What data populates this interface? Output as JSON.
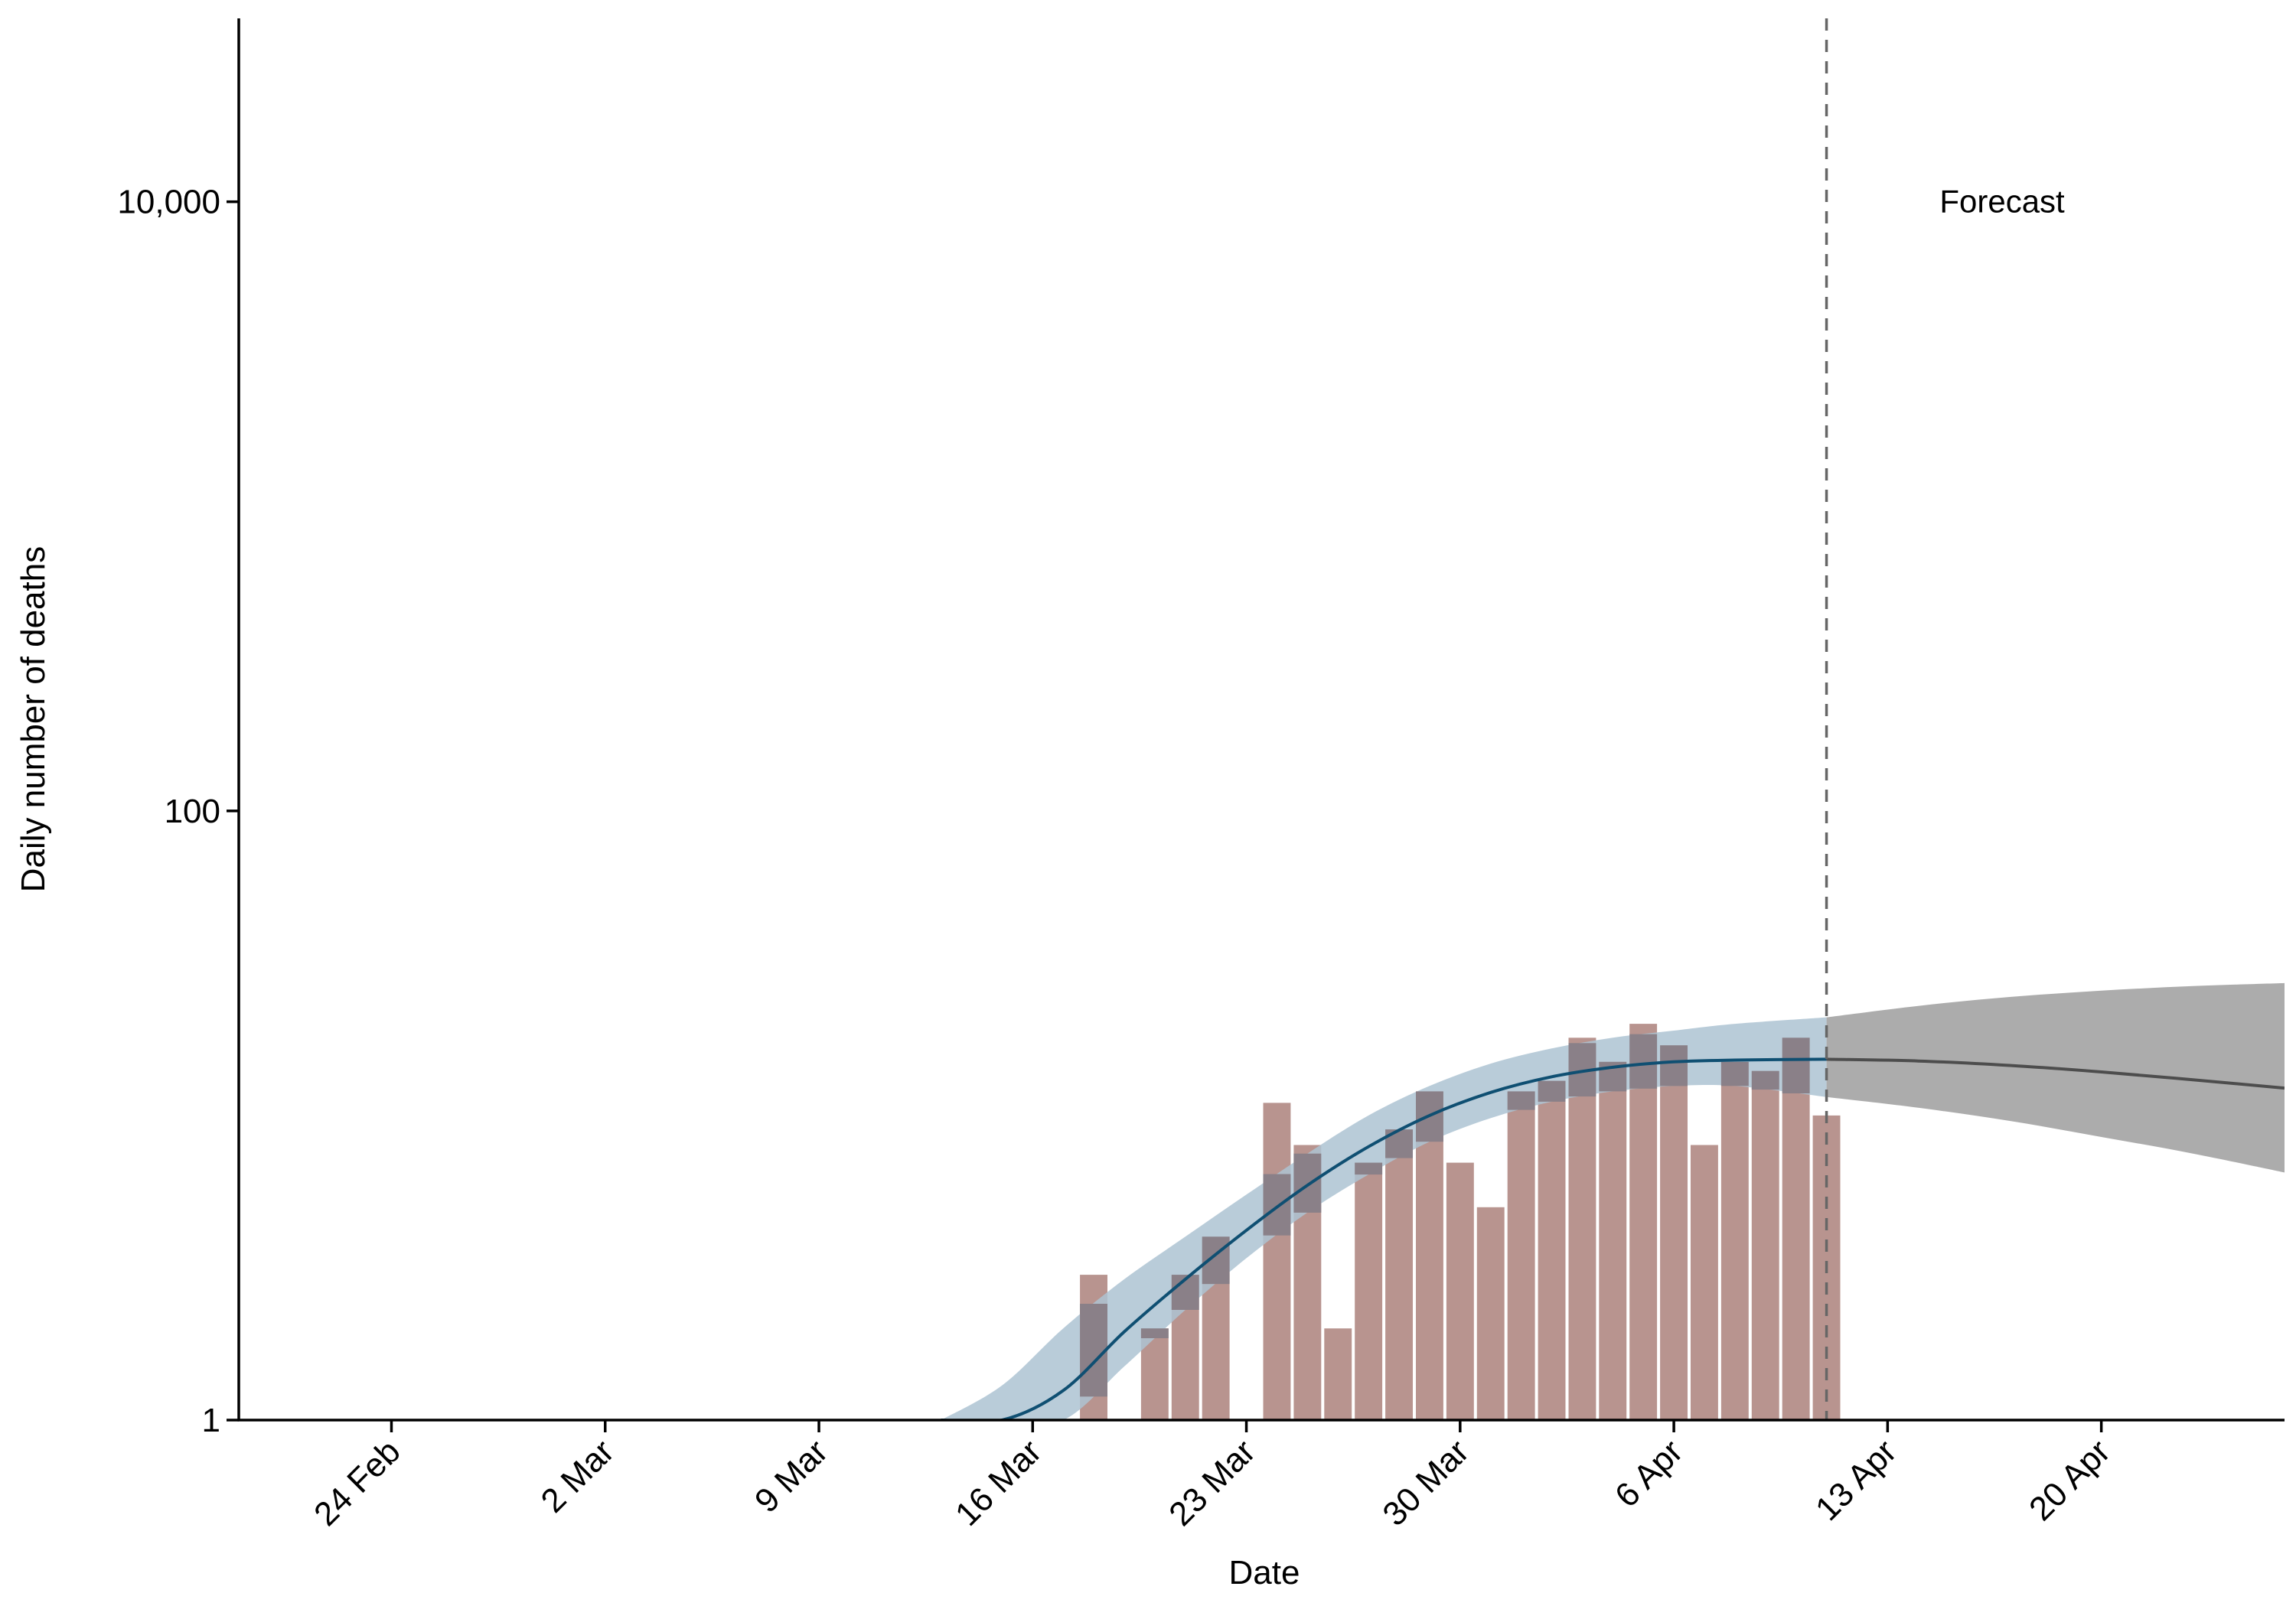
{
  "chart_data": {
    "type": "bar",
    "xlabel": "Date",
    "ylabel": "Daily number of deaths",
    "y_scale": "log10",
    "ylim": [
      1,
      40000
    ],
    "xlim": [
      "2020-02-19",
      "2020-04-26"
    ],
    "x_ticks": [
      {
        "date": "2020-02-24",
        "label": "24 Feb"
      },
      {
        "date": "2020-03-02",
        "label": "2 Mar"
      },
      {
        "date": "2020-03-09",
        "label": "9 Mar"
      },
      {
        "date": "2020-03-16",
        "label": "16 Mar"
      },
      {
        "date": "2020-03-23",
        "label": "23 Mar"
      },
      {
        "date": "2020-03-30",
        "label": "30 Mar"
      },
      {
        "date": "2020-04-06",
        "label": "6 Apr"
      },
      {
        "date": "2020-04-13",
        "label": "13 Apr"
      },
      {
        "date": "2020-04-20",
        "label": "20 Apr"
      }
    ],
    "y_ticks": [
      {
        "value": 1,
        "label": "1"
      },
      {
        "value": 100,
        "label": "100"
      },
      {
        "value": 10000,
        "label": "10,000"
      }
    ],
    "forecast_date": "2020-04-11",
    "annotations": [
      {
        "text": "Forecast",
        "date": "2020-04-16",
        "value": 10000
      }
    ],
    "colors": {
      "bars": "#b8948f",
      "fit_line": "#0f4f72",
      "fit_band": "#adc3d2",
      "forecast_band": "#a8a8a8",
      "forecast_line": "#4d4d4d",
      "vline": "#666666",
      "axis": "#000000"
    },
    "observed_deaths": [
      {
        "date": "2020-03-18",
        "value": 3
      },
      {
        "date": "2020-03-20",
        "value": 2
      },
      {
        "date": "2020-03-21",
        "value": 3
      },
      {
        "date": "2020-03-22",
        "value": 4
      },
      {
        "date": "2020-03-24",
        "value": 11
      },
      {
        "date": "2020-03-25",
        "value": 8
      },
      {
        "date": "2020-03-26",
        "value": 2
      },
      {
        "date": "2020-03-27",
        "value": 7
      },
      {
        "date": "2020-03-28",
        "value": 9
      },
      {
        "date": "2020-03-29",
        "value": 12
      },
      {
        "date": "2020-03-30",
        "value": 7
      },
      {
        "date": "2020-03-31",
        "value": 5
      },
      {
        "date": "2020-04-01",
        "value": 12
      },
      {
        "date": "2020-04-02",
        "value": 13
      },
      {
        "date": "2020-04-03",
        "value": 18
      },
      {
        "date": "2020-04-04",
        "value": 15
      },
      {
        "date": "2020-04-05",
        "value": 20
      },
      {
        "date": "2020-04-06",
        "value": 17
      },
      {
        "date": "2020-04-07",
        "value": 8
      },
      {
        "date": "2020-04-08",
        "value": 15
      },
      {
        "date": "2020-04-09",
        "value": 14
      },
      {
        "date": "2020-04-10",
        "value": 18
      },
      {
        "date": "2020-04-11",
        "value": 10
      }
    ],
    "fitted": {
      "dates": [
        "2020-03-13",
        "2020-03-15",
        "2020-03-17",
        "2020-03-19",
        "2020-03-21",
        "2020-03-23",
        "2020-03-25",
        "2020-03-27",
        "2020-03-29",
        "2020-03-31",
        "2020-04-02",
        "2020-04-04",
        "2020-04-06",
        "2020-04-08",
        "2020-04-11"
      ],
      "median": [
        0.45,
        0.75,
        1.25,
        1.95,
        2.9,
        4.2,
        5.9,
        7.9,
        10.0,
        11.9,
        13.4,
        14.4,
        15.0,
        15.2,
        15.3
      ],
      "lower": [
        0.35,
        0.6,
        0.95,
        1.5,
        2.3,
        3.4,
        4.8,
        6.4,
        8.2,
        9.8,
        11.1,
        12.0,
        12.5,
        12.5,
        11.5
      ],
      "upper": [
        0.8,
        1.3,
        2.0,
        2.9,
        4.0,
        5.5,
        7.5,
        10.0,
        12.5,
        14.8,
        16.6,
        18.0,
        19.0,
        20.0,
        21.0
      ]
    },
    "forecast": {
      "dates": [
        "2020-04-11",
        "2020-04-14",
        "2020-04-17",
        "2020-04-20",
        "2020-04-23",
        "2020-04-26"
      ],
      "median": [
        15.3,
        15.1,
        14.6,
        13.9,
        13.1,
        12.3
      ],
      "lower": [
        11.5,
        10.6,
        9.6,
        8.5,
        7.5,
        6.5
      ],
      "upper": [
        21.0,
        22.9,
        24.5,
        25.7,
        26.6,
        27.2
      ]
    }
  }
}
